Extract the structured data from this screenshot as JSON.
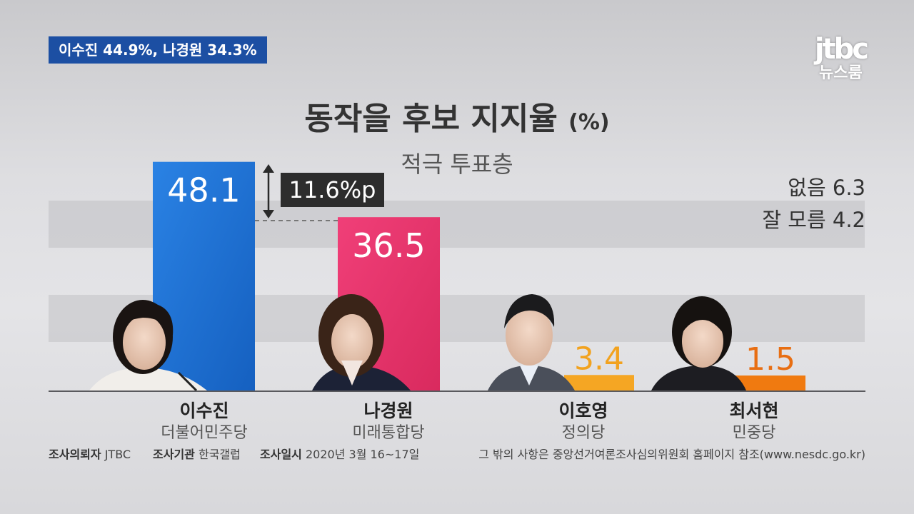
{
  "caption": "이수진 44.9%, 나경원 34.3%",
  "logo": {
    "brand": "jtbc",
    "program": "뉴스룸"
  },
  "title": "동작을 후보 지지율",
  "title_unit": "(%)",
  "subtitle": "적극 투표층",
  "others": [
    {
      "label": "없음 6.3"
    },
    {
      "label": "잘 모름 4.2"
    }
  ],
  "gap_label": "11.6%p",
  "chart_data": {
    "type": "bar",
    "title": "동작을 후보 지지율",
    "unit": "(%)",
    "subtitle": "적극 투표층",
    "categories": [
      "이수진",
      "나경원",
      "이호영",
      "최서현"
    ],
    "parties": [
      "더불어민주당",
      "미래통합당",
      "정의당",
      "민중당"
    ],
    "values": [
      48.1,
      36.5,
      3.4,
      1.5
    ],
    "value_labels": [
      "48.1",
      "36.5",
      "3.4",
      "1.5"
    ],
    "colors": [
      "#1e6fd0",
      "#e6336a",
      "#f5a623",
      "#f07a10"
    ],
    "gap": {
      "between": [
        "이수진",
        "나경원"
      ],
      "label": "11.6%p"
    },
    "others": [
      {
        "label": "없음",
        "value": 6.3
      },
      {
        "label": "잘 모름",
        "value": 4.2
      }
    ]
  },
  "footer": {
    "requester_label": "조사의뢰자",
    "requester": "JTBC",
    "agency_label": "조사기관",
    "agency": "한국갤럽",
    "date_label": "조사일시",
    "date": "2020년 3월 16~17일",
    "note": "그 밖의 사항은 중앙선거여론조사심의위원회 홈페이지 참조(www.nesdc.go.kr)"
  }
}
